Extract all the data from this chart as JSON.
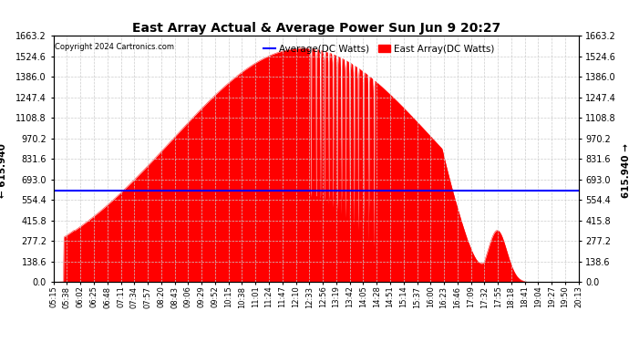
{
  "title": "East Array Actual & Average Power Sun Jun 9 20:27",
  "copyright": "Copyright 2024 Cartronics.com",
  "average_value": 615.94,
  "ymax": 1663.2,
  "ymin": 0.0,
  "yticks": [
    0.0,
    138.6,
    277.2,
    415.8,
    554.4,
    693.0,
    831.6,
    970.2,
    1108.8,
    1247.4,
    1386.0,
    1524.6,
    1663.2
  ],
  "xtick_labels": [
    "05:15",
    "05:38",
    "06:02",
    "06:25",
    "06:48",
    "07:11",
    "07:34",
    "07:57",
    "08:20",
    "08:43",
    "09:06",
    "09:29",
    "09:52",
    "10:15",
    "10:38",
    "11:01",
    "11:24",
    "11:47",
    "12:10",
    "12:33",
    "12:56",
    "13:19",
    "13:42",
    "14:05",
    "14:28",
    "14:51",
    "15:14",
    "15:37",
    "16:00",
    "16:23",
    "16:46",
    "17:09",
    "17:32",
    "17:55",
    "18:18",
    "18:41",
    "19:04",
    "19:27",
    "19:50",
    "20:13"
  ],
  "fill_color": "#ff0000",
  "line_color": "#ff0000",
  "avg_line_color": "#0000ff",
  "background_color": "#ffffff",
  "grid_color": "#cccccc",
  "title_color": "#000000",
  "legend_avg_color": "#0000ff",
  "legend_east_color": "#ff0000",
  "avg_label": "615.940"
}
